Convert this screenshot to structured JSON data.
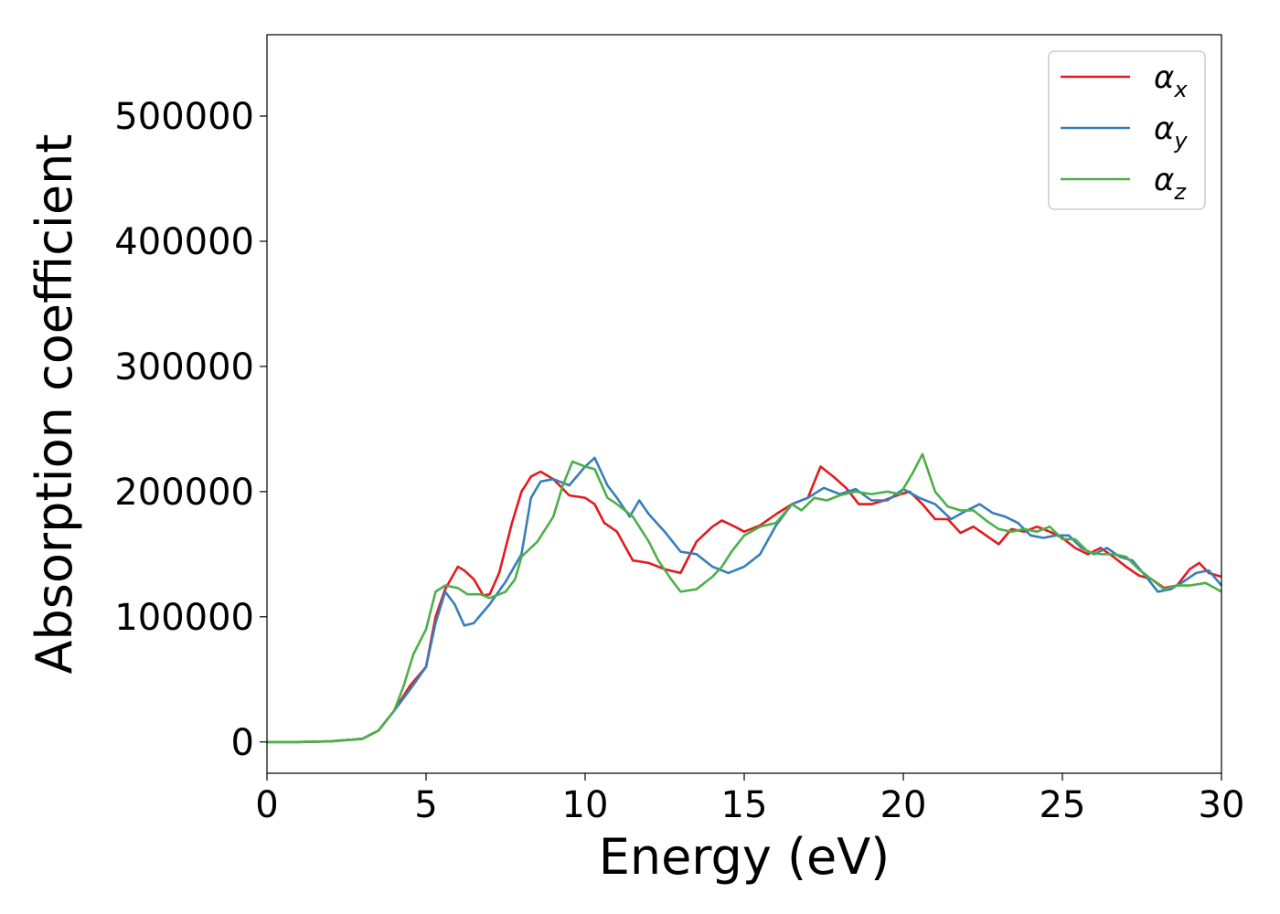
{
  "chart_data": {
    "type": "line",
    "title": "",
    "xlabel": "Energy (eV)",
    "ylabel": "Absorption coefficient",
    "xlim": [
      0,
      30
    ],
    "ylim": [
      -25000,
      565000
    ],
    "xticks": [
      0,
      5,
      10,
      15,
      20,
      25,
      30
    ],
    "yticks": [
      0,
      100000,
      200000,
      300000,
      400000,
      500000
    ],
    "grid": false,
    "legend_position": "top-right",
    "series": [
      {
        "name": "α",
        "subscript": "x",
        "color": "#e41a1c",
        "points": [
          [
            0,
            0
          ],
          [
            1,
            0
          ],
          [
            2,
            500
          ],
          [
            3,
            2500
          ],
          [
            3.5,
            9000
          ],
          [
            4,
            25000
          ],
          [
            4.5,
            45000
          ],
          [
            5,
            60000
          ],
          [
            5.3,
            100000
          ],
          [
            5.6,
            122000
          ],
          [
            6,
            140000
          ],
          [
            6.2,
            137000
          ],
          [
            6.5,
            130000
          ],
          [
            6.8,
            117000
          ],
          [
            7,
            118000
          ],
          [
            7.3,
            135000
          ],
          [
            7.7,
            175000
          ],
          [
            8,
            200000
          ],
          [
            8.3,
            212000
          ],
          [
            8.6,
            216000
          ],
          [
            9,
            210000
          ],
          [
            9.5,
            197000
          ],
          [
            10,
            195000
          ],
          [
            10.3,
            190000
          ],
          [
            10.6,
            175000
          ],
          [
            11,
            168000
          ],
          [
            11.5,
            145000
          ],
          [
            12,
            143000
          ],
          [
            12.5,
            138000
          ],
          [
            13,
            135000
          ],
          [
            13.5,
            160000
          ],
          [
            14,
            172000
          ],
          [
            14.3,
            177000
          ],
          [
            14.7,
            172000
          ],
          [
            15,
            168000
          ],
          [
            15.5,
            173000
          ],
          [
            16,
            182000
          ],
          [
            16.5,
            190000
          ],
          [
            17,
            195000
          ],
          [
            17.4,
            220000
          ],
          [
            17.8,
            212000
          ],
          [
            18.2,
            203000
          ],
          [
            18.6,
            190000
          ],
          [
            19,
            190000
          ],
          [
            19.4,
            193000
          ],
          [
            19.8,
            197000
          ],
          [
            20.2,
            200000
          ],
          [
            20.6,
            190000
          ],
          [
            21,
            178000
          ],
          [
            21.4,
            178000
          ],
          [
            21.8,
            167000
          ],
          [
            22.2,
            172000
          ],
          [
            22.6,
            165000
          ],
          [
            23,
            158000
          ],
          [
            23.4,
            170000
          ],
          [
            23.8,
            168000
          ],
          [
            24.2,
            172000
          ],
          [
            24.6,
            168000
          ],
          [
            25,
            163000
          ],
          [
            25.4,
            155000
          ],
          [
            25.8,
            150000
          ],
          [
            26.2,
            155000
          ],
          [
            26.6,
            148000
          ],
          [
            27,
            140000
          ],
          [
            27.4,
            133000
          ],
          [
            27.8,
            130000
          ],
          [
            28.2,
            123000
          ],
          [
            28.6,
            125000
          ],
          [
            29,
            138000
          ],
          [
            29.3,
            143000
          ],
          [
            29.6,
            135000
          ],
          [
            30,
            132000
          ]
        ]
      },
      {
        "name": "α",
        "subscript": "y",
        "color": "#377eb8",
        "points": [
          [
            0,
            0
          ],
          [
            1,
            0
          ],
          [
            2,
            500
          ],
          [
            3,
            2500
          ],
          [
            3.5,
            9000
          ],
          [
            4,
            25000
          ],
          [
            4.5,
            42000
          ],
          [
            5,
            60000
          ],
          [
            5.3,
            95000
          ],
          [
            5.6,
            120000
          ],
          [
            5.9,
            110000
          ],
          [
            6.2,
            93000
          ],
          [
            6.5,
            95000
          ],
          [
            7,
            110000
          ],
          [
            7.5,
            128000
          ],
          [
            8,
            150000
          ],
          [
            8.3,
            195000
          ],
          [
            8.6,
            208000
          ],
          [
            9,
            210000
          ],
          [
            9.5,
            205000
          ],
          [
            10,
            220000
          ],
          [
            10.3,
            227000
          ],
          [
            10.7,
            205000
          ],
          [
            11,
            195000
          ],
          [
            11.4,
            180000
          ],
          [
            11.7,
            193000
          ],
          [
            12,
            182000
          ],
          [
            12.5,
            168000
          ],
          [
            13,
            152000
          ],
          [
            13.5,
            150000
          ],
          [
            14,
            140000
          ],
          [
            14.5,
            135000
          ],
          [
            15,
            140000
          ],
          [
            15.5,
            150000
          ],
          [
            16,
            173000
          ],
          [
            16.5,
            190000
          ],
          [
            17,
            195000
          ],
          [
            17.5,
            203000
          ],
          [
            18,
            198000
          ],
          [
            18.5,
            202000
          ],
          [
            19,
            193000
          ],
          [
            19.5,
            193000
          ],
          [
            20,
            202000
          ],
          [
            20.5,
            195000
          ],
          [
            21,
            190000
          ],
          [
            21.5,
            178000
          ],
          [
            22,
            185000
          ],
          [
            22.4,
            190000
          ],
          [
            22.8,
            183000
          ],
          [
            23.2,
            180000
          ],
          [
            23.6,
            175000
          ],
          [
            24,
            165000
          ],
          [
            24.4,
            163000
          ],
          [
            24.8,
            165000
          ],
          [
            25.2,
            165000
          ],
          [
            25.6,
            155000
          ],
          [
            26,
            150000
          ],
          [
            26.4,
            155000
          ],
          [
            26.8,
            148000
          ],
          [
            27.2,
            145000
          ],
          [
            27.6,
            133000
          ],
          [
            28,
            120000
          ],
          [
            28.4,
            122000
          ],
          [
            28.8,
            128000
          ],
          [
            29.2,
            135000
          ],
          [
            29.6,
            137000
          ],
          [
            30,
            125000
          ]
        ]
      },
      {
        "name": "α",
        "subscript": "z",
        "color": "#4daf4a",
        "points": [
          [
            0,
            0
          ],
          [
            1,
            0
          ],
          [
            2,
            500
          ],
          [
            3,
            2500
          ],
          [
            3.5,
            9000
          ],
          [
            4,
            25000
          ],
          [
            4.3,
            45000
          ],
          [
            4.6,
            70000
          ],
          [
            5,
            90000
          ],
          [
            5.3,
            120000
          ],
          [
            5.6,
            125000
          ],
          [
            6,
            123000
          ],
          [
            6.3,
            118000
          ],
          [
            6.7,
            118000
          ],
          [
            7,
            115000
          ],
          [
            7.5,
            120000
          ],
          [
            7.8,
            130000
          ],
          [
            8,
            148000
          ],
          [
            8.5,
            160000
          ],
          [
            9,
            180000
          ],
          [
            9.3,
            205000
          ],
          [
            9.6,
            224000
          ],
          [
            10,
            220000
          ],
          [
            10.3,
            218000
          ],
          [
            10.7,
            195000
          ],
          [
            11,
            190000
          ],
          [
            11.5,
            180000
          ],
          [
            12,
            160000
          ],
          [
            12.3,
            145000
          ],
          [
            12.7,
            130000
          ],
          [
            13,
            120000
          ],
          [
            13.5,
            122000
          ],
          [
            14,
            132000
          ],
          [
            14.3,
            140000
          ],
          [
            14.6,
            152000
          ],
          [
            15,
            165000
          ],
          [
            15.5,
            172000
          ],
          [
            16,
            175000
          ],
          [
            16.5,
            190000
          ],
          [
            16.8,
            185000
          ],
          [
            17.2,
            195000
          ],
          [
            17.6,
            193000
          ],
          [
            18,
            197000
          ],
          [
            18.5,
            200000
          ],
          [
            19,
            198000
          ],
          [
            19.5,
            200000
          ],
          [
            19.9,
            198000
          ],
          [
            20.3,
            215000
          ],
          [
            20.6,
            230000
          ],
          [
            21,
            200000
          ],
          [
            21.4,
            188000
          ],
          [
            21.8,
            185000
          ],
          [
            22.2,
            185000
          ],
          [
            22.6,
            177000
          ],
          [
            23,
            170000
          ],
          [
            23.4,
            168000
          ],
          [
            23.8,
            170000
          ],
          [
            24.2,
            168000
          ],
          [
            24.6,
            172000
          ],
          [
            25,
            162000
          ],
          [
            25.4,
            162000
          ],
          [
            25.8,
            152000
          ],
          [
            26.2,
            150000
          ],
          [
            26.6,
            150000
          ],
          [
            27,
            148000
          ],
          [
            27.4,
            138000
          ],
          [
            27.8,
            130000
          ],
          [
            28.2,
            122000
          ],
          [
            28.6,
            125000
          ],
          [
            29,
            125000
          ],
          [
            29.5,
            127000
          ],
          [
            30,
            120000
          ]
        ]
      }
    ]
  }
}
